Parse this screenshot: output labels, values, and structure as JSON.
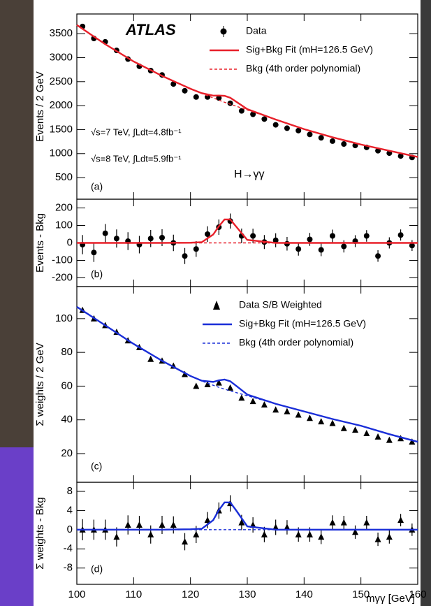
{
  "chart_data": [
    {
      "type": "line",
      "ylabel": "Events / 2 GeV",
      "xlim": [
        100,
        160
      ],
      "xticks": [
        100,
        110,
        120,
        130,
        140,
        150,
        160
      ],
      "ylim": [
        50,
        3910
      ],
      "yticks": [
        500,
        1000,
        1500,
        2000,
        2500,
        3000,
        3500
      ],
      "legend": "upper right",
      "annotations": [
        "ATLAS",
        "√s=7 TeV, ∫Ldt=4.8fb⁻¹",
        "√s=8 TeV, ∫Ldt=5.9fb⁻¹",
        "H→γγ",
        "(a)"
      ],
      "series": [
        {
          "name": "Data",
          "kind": "points",
          "marker": "circle",
          "color": "#000000",
          "x": [
            101,
            103,
            105,
            107,
            109,
            111,
            113,
            115,
            117,
            119,
            121,
            123,
            125,
            127,
            129,
            131,
            133,
            135,
            137,
            139,
            141,
            143,
            145,
            147,
            149,
            151,
            153,
            155,
            157,
            159
          ],
          "values": [
            3650,
            3400,
            3330,
            3150,
            2970,
            2820,
            2730,
            2640,
            2450,
            2310,
            2180,
            2180,
            2160,
            2050,
            1890,
            1820,
            1720,
            1600,
            1530,
            1480,
            1400,
            1330,
            1260,
            1200,
            1170,
            1130,
            1060,
            1010,
            950,
            920
          ]
        },
        {
          "name": "Sig+Bkg Fit  (mH=126.5 GeV)",
          "kind": "line",
          "style": "solid",
          "color": "#e8202a",
          "x": [
            100,
            105,
            110,
            115,
            120,
            122,
            124,
            125,
            126,
            127,
            128,
            130,
            135,
            140,
            145,
            150,
            155,
            160
          ],
          "values": [
            3680,
            3280,
            2920,
            2620,
            2351,
            2259,
            2208,
            2210,
            2204,
            2164,
            2085,
            1927,
            1710,
            1510,
            1340,
            1190,
            1060,
            930
          ]
        },
        {
          "name": "Bkg (4th order polynomial)",
          "kind": "line",
          "style": "dashed",
          "color": "#e8202a",
          "x": [
            100,
            105,
            110,
            115,
            120,
            122,
            124,
            125,
            126,
            127,
            128,
            130,
            135,
            140,
            145,
            150,
            155,
            160
          ],
          "values": [
            3680,
            3280,
            2920,
            2620,
            2350,
            2255,
            2160,
            2115,
            2070,
            2030,
            1990,
            1910,
            1710,
            1510,
            1340,
            1190,
            1060,
            930
          ]
        }
      ]
    },
    {
      "type": "line",
      "ylabel": "Events - Bkg",
      "xlim": [
        100,
        160
      ],
      "xticks": [
        100,
        110,
        120,
        130,
        140,
        150,
        160
      ],
      "ylim": [
        -250,
        250
      ],
      "yticks": [
        -200,
        -100,
        0,
        100,
        200
      ],
      "annotations": [
        "(b)"
      ],
      "series": [
        {
          "kind": "points",
          "marker": "circle",
          "color": "#000000",
          "x": [
            101,
            103,
            105,
            107,
            109,
            111,
            113,
            115,
            117,
            119,
            121,
            123,
            125,
            127,
            129,
            131,
            133,
            135,
            137,
            139,
            141,
            143,
            145,
            147,
            149,
            151,
            153,
            155,
            157,
            159
          ],
          "values": [
            -10,
            -55,
            55,
            25,
            10,
            -10,
            25,
            30,
            0,
            -75,
            -35,
            50,
            90,
            125,
            40,
            40,
            5,
            15,
            -5,
            -35,
            20,
            -40,
            40,
            -20,
            10,
            40,
            -75,
            0,
            45,
            -15
          ],
          "errors": [
            55,
            54,
            53,
            52,
            51,
            50,
            49,
            48,
            47,
            46,
            45,
            45,
            44,
            43,
            42,
            41,
            40,
            40,
            39,
            38,
            37,
            36,
            36,
            35,
            34,
            33,
            33,
            32,
            32,
            31
          ]
        },
        {
          "kind": "line",
          "style": "solid",
          "color": "#e8202a",
          "x": [
            100,
            105,
            110,
            115,
            120,
            122,
            124,
            125,
            126,
            127,
            128,
            130,
            135,
            140,
            145,
            150,
            155,
            160
          ],
          "values": [
            0,
            0,
            0,
            0,
            1,
            4,
            48,
            95,
            134,
            134,
            95,
            17,
            0,
            0,
            0,
            0,
            0,
            0
          ]
        },
        {
          "kind": "line",
          "style": "dashed",
          "color": "#e8202a",
          "x": [
            100,
            160
          ],
          "values": [
            0,
            0
          ]
        }
      ]
    },
    {
      "type": "line",
      "ylabel": "Σ weights / 2 GeV",
      "xlim": [
        100,
        160
      ],
      "xticks": [
        100,
        110,
        120,
        130,
        140,
        150,
        160
      ],
      "ylim": [
        3,
        119
      ],
      "yticks": [
        20,
        40,
        60,
        80,
        100
      ],
      "legend": "upper right",
      "annotations": [
        "(c)"
      ],
      "series": [
        {
          "name": "Data S/B Weighted",
          "kind": "points",
          "marker": "triangle",
          "color": "#000000",
          "x": [
            101,
            103,
            105,
            107,
            109,
            111,
            113,
            115,
            117,
            119,
            121,
            123,
            125,
            127,
            129,
            131,
            133,
            135,
            137,
            139,
            141,
            143,
            145,
            147,
            149,
            151,
            153,
            155,
            157,
            159
          ],
          "values": [
            105,
            100,
            96,
            92,
            87,
            83,
            76,
            75,
            72,
            67,
            60,
            61,
            62,
            59,
            53,
            51,
            49,
            46,
            45,
            43,
            41,
            39,
            38,
            35,
            34,
            32,
            30,
            28,
            29,
            27
          ]
        },
        {
          "name": "Sig+Bkg Fit  (mH=126.5 GeV)",
          "kind": "line",
          "style": "solid",
          "color": "#1a2ed8",
          "x": [
            100,
            105,
            110,
            115,
            120,
            122,
            124,
            125,
            126,
            127,
            128,
            130,
            135,
            140,
            145,
            150,
            155,
            160
          ],
          "values": [
            107,
            96,
            85,
            75,
            66,
            63.2,
            62.5,
            63.4,
            63.9,
            62.9,
            60.3,
            55,
            49.5,
            45,
            40.5,
            36.5,
            31.5,
            27
          ]
        },
        {
          "name": "Bkg (4th order polynomial)",
          "kind": "line",
          "style": "dashed",
          "color": "#1a2ed8",
          "x": [
            100,
            105,
            110,
            115,
            120,
            122,
            124,
            125,
            126,
            127,
            128,
            130,
            135,
            140,
            145,
            150,
            155,
            160
          ],
          "values": [
            107,
            96,
            85,
            75,
            66,
            63,
            60.5,
            59.3,
            58.2,
            57.2,
            56.2,
            54.3,
            49.5,
            45,
            40.5,
            36.5,
            31.5,
            27
          ]
        }
      ]
    },
    {
      "type": "line",
      "ylabel": "Σ weights - Bkg",
      "xlabel": "mγγ [GeV]",
      "xtick_labels": true,
      "xlim": [
        100,
        160
      ],
      "xticks": [
        100,
        110,
        120,
        130,
        140,
        150,
        160
      ],
      "ylim": [
        -11.4,
        9.9
      ],
      "yticks": [
        -8,
        -4,
        0,
        4,
        8
      ],
      "annotations": [
        "(d)"
      ],
      "series": [
        {
          "kind": "points",
          "marker": "triangle",
          "color": "#000000",
          "x": [
            101,
            103,
            105,
            107,
            109,
            111,
            113,
            115,
            117,
            119,
            121,
            123,
            125,
            127,
            129,
            131,
            133,
            135,
            137,
            139,
            141,
            143,
            145,
            147,
            149,
            151,
            153,
            155,
            157,
            159
          ],
          "values": [
            0,
            0,
            0,
            -1.5,
            1,
            1,
            -1,
            1,
            1,
            -2.5,
            -1,
            2,
            4,
            5.5,
            1.5,
            1,
            -1,
            0.5,
            0.5,
            -1,
            -1,
            -1.5,
            1.5,
            1.5,
            -0.5,
            1.5,
            -2,
            -1.5,
            2,
            0
          ],
          "errors": [
            2.2,
            2.1,
            2.1,
            2.0,
            2.0,
            1.9,
            1.9,
            1.9,
            1.8,
            1.8,
            1.8,
            1.7,
            1.7,
            1.7,
            1.6,
            1.6,
            1.6,
            1.6,
            1.5,
            1.5,
            1.5,
            1.5,
            1.5,
            1.4,
            1.4,
            1.4,
            1.4,
            1.4,
            1.3,
            1.3
          ]
        },
        {
          "kind": "line",
          "style": "solid",
          "color": "#1a2ed8",
          "x": [
            100,
            105,
            110,
            115,
            120,
            122,
            124,
            125,
            126,
            127,
            128,
            130,
            135,
            140,
            145,
            150,
            155,
            160
          ],
          "values": [
            0,
            0,
            0,
            0,
            0.1,
            0.2,
            2.0,
            4.1,
            5.7,
            5.7,
            4.1,
            0.7,
            0,
            0,
            0,
            0,
            0,
            0
          ]
        },
        {
          "kind": "line",
          "style": "dashed",
          "color": "#1a2ed8",
          "x": [
            100,
            160
          ],
          "values": [
            0,
            0
          ]
        }
      ]
    }
  ]
}
